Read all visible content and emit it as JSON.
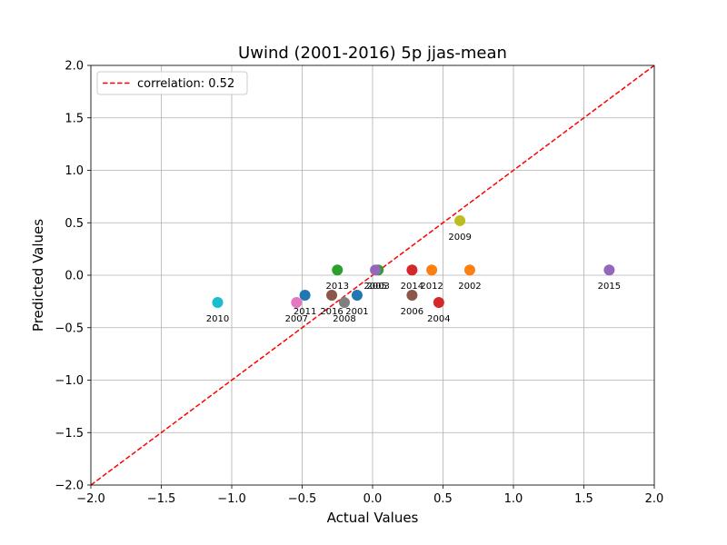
{
  "chart_data": {
    "type": "scatter",
    "title": "Uwind (2001-2016) 5p jjas-mean",
    "xlabel": "Actual Values",
    "ylabel": "Predicted Values",
    "xlim": [
      -2.0,
      2.0
    ],
    "ylim": [
      -2.0,
      2.0
    ],
    "x_ticks": [
      "−2.0",
      "−1.5",
      "−1.0",
      "−0.5",
      "0.0",
      "0.5",
      "1.0",
      "1.5",
      "2.0"
    ],
    "y_ticks": [
      "−2.0",
      "−1.5",
      "−1.0",
      "−0.5",
      "0.0",
      "0.5",
      "1.0",
      "1.5",
      "2.0"
    ],
    "grid": true,
    "legend": {
      "placement": "upper-left",
      "label": "correlation: 0.52"
    },
    "reference_line": {
      "from": [
        -2.0,
        -2.0
      ],
      "to": [
        2.0,
        2.0
      ],
      "color": "#ff0000",
      "style": "dashed"
    },
    "points": [
      {
        "label": "2001",
        "x": -0.11,
        "y": -0.19,
        "color": "#1f77b4"
      },
      {
        "label": "2002",
        "x": 0.69,
        "y": 0.05,
        "color": "#ff7f0e"
      },
      {
        "label": "2003",
        "x": 0.04,
        "y": 0.05,
        "color": "#2ca02c"
      },
      {
        "label": "2004",
        "x": 0.47,
        "y": -0.26,
        "color": "#d62728"
      },
      {
        "label": "2005",
        "x": 0.02,
        "y": 0.05,
        "color": "#9467bd"
      },
      {
        "label": "2006",
        "x": 0.28,
        "y": -0.19,
        "color": "#8c564b"
      },
      {
        "label": "2007",
        "x": -0.54,
        "y": -0.26,
        "color": "#e377c2"
      },
      {
        "label": "2008",
        "x": -0.2,
        "y": -0.26,
        "color": "#7f7f7f"
      },
      {
        "label": "2009",
        "x": 0.62,
        "y": 0.52,
        "color": "#bcbd22"
      },
      {
        "label": "2010",
        "x": -1.1,
        "y": -0.26,
        "color": "#17becf"
      },
      {
        "label": "2011",
        "x": -0.48,
        "y": -0.19,
        "color": "#1f77b4"
      },
      {
        "label": "2012",
        "x": 0.42,
        "y": 0.05,
        "color": "#ff7f0e"
      },
      {
        "label": "2013",
        "x": -0.25,
        "y": 0.05,
        "color": "#2ca02c"
      },
      {
        "label": "2014",
        "x": 0.28,
        "y": 0.05,
        "color": "#d62728"
      },
      {
        "label": "2015",
        "x": 1.68,
        "y": 0.05,
        "color": "#9467bd"
      },
      {
        "label": "2016",
        "x": -0.29,
        "y": -0.19,
        "color": "#8c564b"
      }
    ]
  }
}
